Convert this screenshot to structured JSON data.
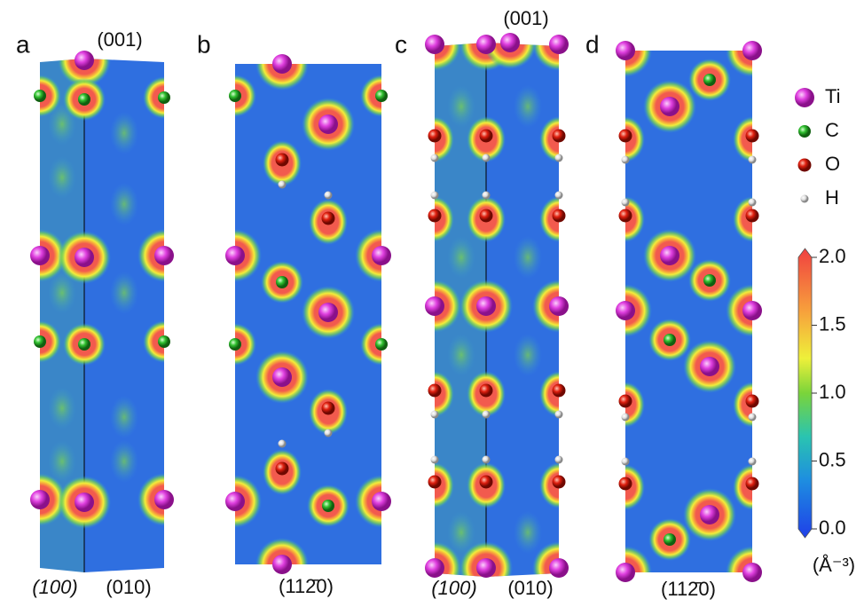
{
  "panels": [
    {
      "label": "a",
      "top_label": "(001)",
      "bottom_labels": [
        "(100)",
        "(010)"
      ]
    },
    {
      "label": "b",
      "bottom_labels": [
        "(112̄0)"
      ]
    },
    {
      "label": "c",
      "top_label": "(001)",
      "bottom_labels": [
        "(100)",
        "(010)"
      ]
    },
    {
      "label": "d",
      "bottom_labels": [
        "(112̄0)"
      ]
    }
  ],
  "legend": [
    "Ti",
    "C",
    "O",
    "H"
  ],
  "colorbar": {
    "ticks": [
      {
        "value": 0,
        "label": "0.0"
      },
      0.5,
      {
        "value": 1,
        "label": "1.0"
      },
      1.5,
      {
        "value": 2,
        "label": "2.0"
      }
    ],
    "unit": "(Å⁻³)"
  }
}
